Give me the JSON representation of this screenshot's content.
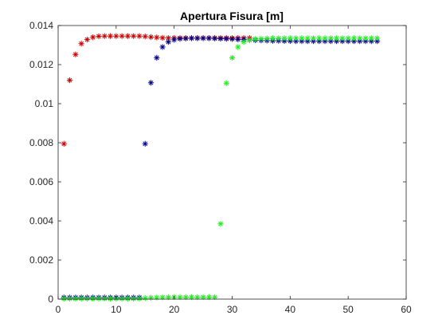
{
  "chart_data": {
    "type": "scatter",
    "title": "Apertura Fisura [m]",
    "xlabel": "",
    "ylabel": "",
    "xlim": [
      0,
      60
    ],
    "ylim": [
      0,
      0.014
    ],
    "x_ticks": [
      0,
      10,
      20,
      30,
      40,
      50,
      60
    ],
    "x_tick_labels": [
      "0",
      "10",
      "20",
      "30",
      "40",
      "50",
      "60"
    ],
    "y_ticks": [
      0,
      0.002,
      0.004,
      0.006,
      0.008,
      0.01,
      0.012,
      0.014
    ],
    "y_tick_labels": [
      "0",
      "0.002",
      "0.004",
      "0.006",
      "0.008",
      "0.01",
      "0.012",
      "0.014"
    ],
    "grid": false,
    "marker": "asterisk",
    "series": [
      {
        "color": "#cc0000",
        "x": [
          1,
          2,
          3,
          4,
          5,
          6,
          7,
          8,
          9,
          10,
          11,
          12,
          13,
          14,
          15,
          16,
          17,
          18,
          19,
          20,
          21,
          22,
          23,
          24,
          25,
          26,
          27,
          28,
          29,
          30,
          31,
          32,
          33
        ],
        "y": [
          0.00795,
          0.0112,
          0.01252,
          0.01307,
          0.01328,
          0.0134,
          0.01345,
          0.01346,
          0.01346,
          0.01346,
          0.01346,
          0.01346,
          0.01346,
          0.01346,
          0.01344,
          0.01341,
          0.01339,
          0.01337,
          0.01336,
          0.01336,
          0.01336,
          0.01336,
          0.01336,
          0.01336,
          0.01336,
          0.01336,
          0.01336,
          0.01336,
          0.01336,
          0.01336,
          0.01336,
          0.01336,
          0.01336
        ]
      },
      {
        "color": "#00008b",
        "x": [
          1,
          2,
          3,
          4,
          5,
          6,
          7,
          8,
          9,
          10,
          11,
          12,
          13,
          14,
          15,
          16,
          17,
          18,
          19,
          20,
          21,
          22,
          23,
          24,
          25,
          26,
          27,
          28,
          29,
          30,
          31,
          32,
          33,
          34,
          35,
          36,
          37,
          38,
          39,
          40,
          41,
          42,
          43,
          44,
          45,
          46,
          47,
          48,
          49,
          50,
          51,
          52,
          53,
          54,
          55
        ],
        "y": [
          8e-05,
          8e-05,
          8e-05,
          8e-05,
          8e-05,
          8e-05,
          8e-05,
          8e-05,
          8e-05,
          8e-05,
          8e-05,
          8e-05,
          8e-05,
          8e-05,
          0.00795,
          0.01107,
          0.01235,
          0.0129,
          0.01316,
          0.01327,
          0.01332,
          0.01334,
          0.01335,
          0.01335,
          0.01335,
          0.01335,
          0.01334,
          0.01333,
          0.01332,
          0.01331,
          0.01329,
          0.01328,
          0.01326,
          0.01325,
          0.01324,
          0.01323,
          0.01322,
          0.01322,
          0.01321,
          0.01321,
          0.0132,
          0.0132,
          0.0132,
          0.0132,
          0.0132,
          0.0132,
          0.0132,
          0.0132,
          0.0132,
          0.0132,
          0.0132,
          0.0132,
          0.0132,
          0.0132,
          0.0132
        ]
      },
      {
        "color": "#22ee22",
        "x": [
          1,
          2,
          3,
          4,
          5,
          6,
          7,
          8,
          9,
          10,
          11,
          12,
          13,
          14,
          15,
          16,
          17,
          18,
          19,
          20,
          21,
          22,
          23,
          24,
          25,
          26,
          27,
          28,
          29,
          30,
          31,
          32,
          33,
          34,
          35,
          36,
          37,
          38,
          39,
          40,
          41,
          42,
          43,
          44,
          45,
          46,
          47,
          48,
          49,
          50,
          51,
          52,
          53,
          54,
          55
        ],
        "y": [
          2e-05,
          2e-05,
          2e-05,
          2e-05,
          2e-05,
          2e-05,
          2e-05,
          2e-05,
          2e-05,
          2e-05,
          2e-05,
          2e-05,
          2e-05,
          2e-05,
          5e-05,
          7e-05,
          8e-05,
          9e-05,
          0.0001,
          0.0001,
          0.0001,
          0.0001,
          0.0001,
          0.0001,
          0.0001,
          0.0001,
          0.0001,
          0.00385,
          0.01105,
          0.01235,
          0.0129,
          0.01316,
          0.01326,
          0.01331,
          0.01333,
          0.01334,
          0.01335,
          0.01335,
          0.01335,
          0.01335,
          0.01335,
          0.01335,
          0.01335,
          0.01335,
          0.01335,
          0.01335,
          0.01335,
          0.01335,
          0.01335,
          0.01335,
          0.01335,
          0.01335,
          0.01335,
          0.01335,
          0.01335
        ]
      }
    ]
  }
}
